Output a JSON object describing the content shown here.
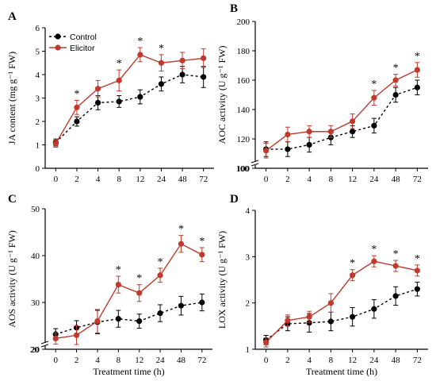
{
  "chart_data": [
    {
      "type": "line",
      "panel": "A",
      "ylabel": "JA content (mg g⁻¹ FW)",
      "xlabel": "",
      "categories": [
        "0",
        "2",
        "4",
        "8",
        "12",
        "24",
        "48",
        "72"
      ],
      "ylim": [
        0,
        6
      ],
      "yticks": [
        "0",
        "1",
        "2",
        "3",
        "4",
        "5",
        "6"
      ],
      "legend_position": "top-left",
      "series": [
        {
          "name": "Control",
          "values": [
            1.1,
            2.0,
            2.8,
            2.85,
            3.05,
            3.6,
            4.0,
            3.9
          ],
          "errors": [
            0.15,
            0.2,
            0.3,
            0.25,
            0.3,
            0.3,
            0.35,
            0.45
          ],
          "color": "#000000"
        },
        {
          "name": "Elicitor",
          "values": [
            1.05,
            2.6,
            3.4,
            3.75,
            4.85,
            4.5,
            4.6,
            4.7
          ],
          "errors": [
            0.15,
            0.3,
            0.35,
            0.45,
            0.3,
            0.35,
            0.35,
            0.4
          ],
          "color": "#c0392b"
        }
      ],
      "significance_labels": [
        "",
        "*",
        "",
        "*",
        "*",
        "*",
        "",
        ""
      ]
    },
    {
      "type": "line",
      "panel": "B",
      "ylabel": "AOC activity (U g⁻¹ FW)",
      "xlabel": "",
      "categories": [
        "0",
        "2",
        "4",
        "8",
        "12",
        "24",
        "48",
        "72"
      ],
      "ylim": [
        100,
        200
      ],
      "yticks": [
        "100",
        "120",
        "140",
        "160",
        "180",
        "200"
      ],
      "axis_break_below": "100",
      "series": [
        {
          "name": "Control",
          "values": [
            113,
            113,
            116,
            121,
            125,
            129,
            150,
            155
          ],
          "errors": [
            5,
            5,
            5,
            5,
            4,
            5,
            5,
            5
          ],
          "color": "#000000"
        },
        {
          "name": "Elicitor",
          "values": [
            112,
            123,
            125,
            125,
            132,
            148,
            160,
            167
          ],
          "errors": [
            5,
            5,
            4,
            4,
            5,
            5,
            4,
            5
          ],
          "color": "#c0392b"
        }
      ],
      "significance_labels": [
        "",
        "",
        "",
        "",
        "",
        "*",
        "*",
        "*"
      ]
    },
    {
      "type": "line",
      "panel": "C",
      "ylabel": "AOS activity (U g⁻¹ FW)",
      "xlabel": "Treatment time (h)",
      "categories": [
        "0",
        "2",
        "4",
        "8",
        "12",
        "24",
        "48",
        "72"
      ],
      "ylim": [
        20,
        50
      ],
      "yticks": [
        "20",
        "30",
        "40",
        "50"
      ],
      "axis_break_below": "20",
      "series": [
        {
          "name": "Control",
          "values": [
            23.2,
            24.6,
            25.8,
            26.5,
            26.0,
            27.7,
            29.3,
            30.0
          ],
          "errors": [
            1.2,
            1.5,
            2.5,
            1.8,
            1.5,
            1.8,
            2.0,
            1.8
          ],
          "color": "#000000"
        },
        {
          "name": "Elicitor",
          "values": [
            22.3,
            23.0,
            26.0,
            33.8,
            32.0,
            35.8,
            42.5,
            40.2
          ],
          "errors": [
            1.2,
            2.0,
            2.5,
            1.8,
            1.8,
            1.5,
            1.8,
            1.5
          ],
          "color": "#c0392b"
        }
      ],
      "significance_labels": [
        "",
        "",
        "",
        "*",
        "*",
        "*",
        "*",
        "*"
      ]
    },
    {
      "type": "line",
      "panel": "D",
      "ylabel": "LOX activity (U g⁻¹ FW)",
      "xlabel": "Treatment time (h)",
      "categories": [
        "0",
        "2",
        "4",
        "8",
        "12",
        "24",
        "48",
        "72"
      ],
      "ylim": [
        1,
        4
      ],
      "yticks": [
        "1",
        "2",
        "3",
        "4"
      ],
      "series": [
        {
          "name": "Control",
          "values": [
            1.2,
            1.55,
            1.57,
            1.6,
            1.7,
            1.87,
            2.15,
            2.3
          ],
          "errors": [
            0.1,
            0.15,
            0.2,
            0.2,
            0.2,
            0.2,
            0.2,
            0.15
          ],
          "color": "#000000"
        },
        {
          "name": "Elicitor",
          "values": [
            1.15,
            1.62,
            1.7,
            2.0,
            2.6,
            2.9,
            2.8,
            2.7
          ],
          "errors": [
            0.1,
            0.12,
            0.12,
            0.2,
            0.12,
            0.12,
            0.12,
            0.12
          ],
          "color": "#c0392b"
        }
      ],
      "significance_labels": [
        "",
        "",
        "",
        "",
        "*",
        "*",
        "*",
        "*"
      ]
    }
  ]
}
